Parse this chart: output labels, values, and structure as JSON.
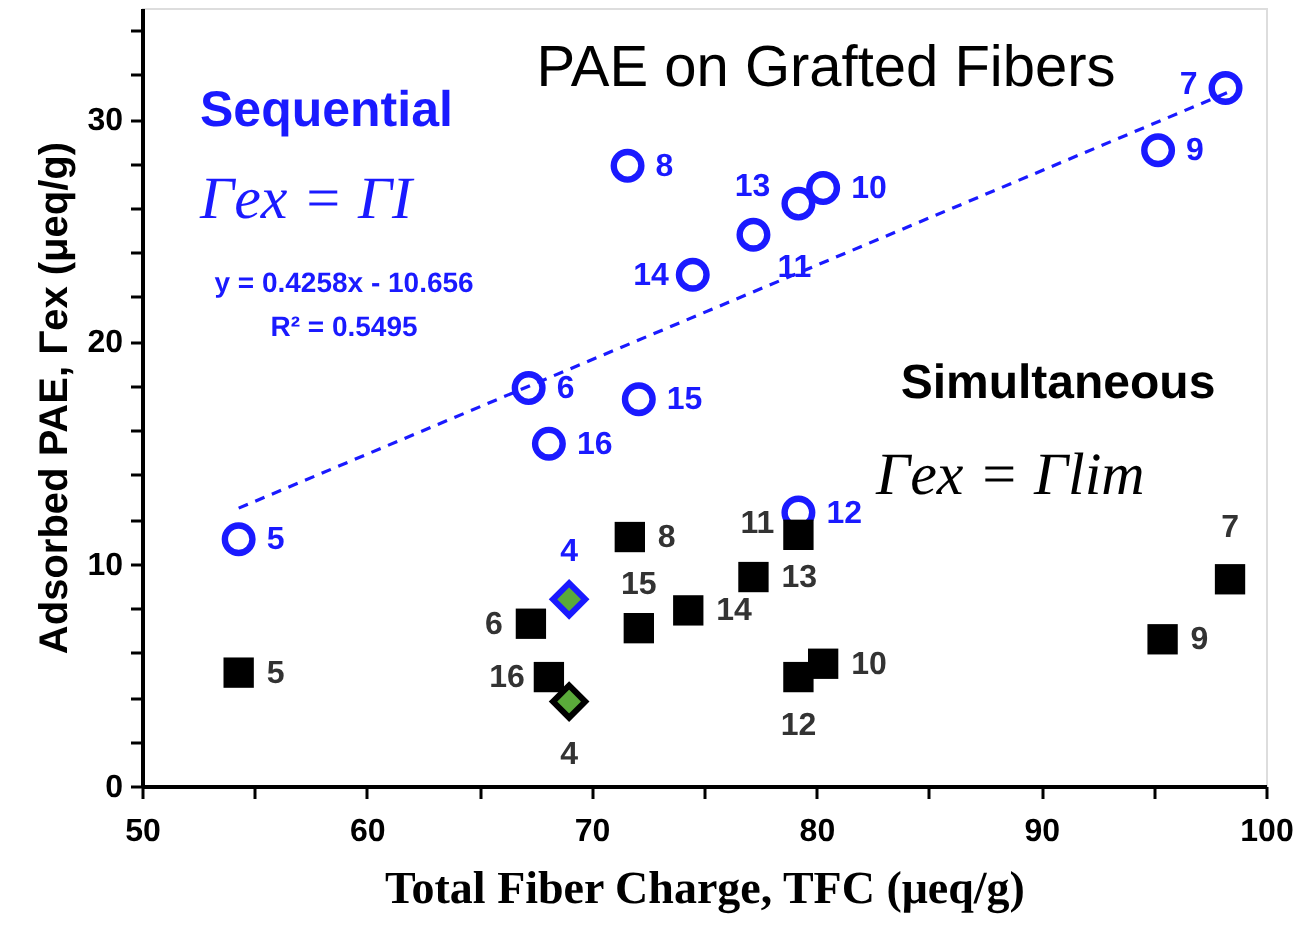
{
  "chart_data": {
    "type": "scatter",
    "title": "PAE on Grafted Fibers",
    "xlabel": "Total Fiber Charge, TFC (μeq/g)",
    "ylabel": "Adsorbed PAE, Γex (μeq/g)",
    "xlim": [
      50,
      100
    ],
    "xticks": [
      50,
      {
        "value": 55,
        "label": null
      },
      60,
      {
        "value": 65,
        "label": null
      },
      70,
      {
        "value": 75,
        "label": null
      },
      80,
      {
        "value": 85,
        "label": null
      },
      90,
      {
        "value": 95,
        "label": null
      },
      100
    ],
    "ylim": [
      0,
      35
    ],
    "yticks": [
      0,
      {
        "value": 2,
        "label": null
      },
      {
        "value": 4,
        "label": null
      },
      {
        "value": 6,
        "label": null
      },
      {
        "value": 8,
        "label": null
      },
      10,
      {
        "value": 12,
        "label": null
      },
      {
        "value": 14,
        "label": null
      },
      {
        "value": 16,
        "label": null
      },
      {
        "value": 18,
        "label": null
      },
      20,
      {
        "value": 22,
        "label": null
      },
      {
        "value": 24,
        "label": null
      },
      {
        "value": 26,
        "label": null
      },
      {
        "value": 28,
        "label": null
      },
      30,
      {
        "value": 32,
        "label": null
      },
      {
        "value": 34,
        "label": null
      }
    ],
    "grid": false,
    "series": [
      {
        "marker": "circle",
        "color": "#1a1aff",
        "x": [
          54.3,
          67.2,
          98.2,
          71.6,
          95.2,
          80.3,
          77.2,
          79.2,
          79.2,
          74.5,
          72.1,
          68.1
        ],
        "values": [
          11.1,
          17.9,
          31.4,
          27.9,
          28.6,
          26.9,
          24.8,
          12.3,
          26.2,
          23.0,
          17.4,
          15.4
        ]
      },
      {
        "marker": "square",
        "color": "#000000",
        "x": [
          54.3,
          67.3,
          98.4,
          71.7,
          95.4,
          80.3,
          79.2,
          79.2,
          77.2,
          74.3,
          72.1,
          68.1
        ],
        "values": [
          5.1,
          7.3,
          9.3,
          11.2,
          6.6,
          5.5,
          11.3,
          4.9,
          9.4,
          7.9,
          7.1,
          4.9
        ]
      },
      {
        "marker": "diamond",
        "color": "#5aaa3a",
        "x": [
          69.0
        ],
        "values": [
          8.4
        ]
      },
      {
        "marker": "diamond",
        "color": "#5aaa3a",
        "x": [
          69.0
        ],
        "values": [
          3.8
        ]
      },
      {
        "type": "line",
        "line_style": "dashed",
        "color": "#1a1aff",
        "x": [
          54.3,
          98.3
        ],
        "values": [
          12.5,
          31.2
        ]
      }
    ],
    "annotations": [
      "Sequential",
      "Γex = ΓI",
      "y = 0.4258x - 10.656",
      "R² = 0.5495",
      "Simultaneous",
      "Γex = Γlim",
      {
        "text": "5",
        "x": 54.3,
        "y": 11.1
      },
      {
        "text": "6",
        "x": 67.2,
        "y": 17.9
      },
      {
        "text": "7",
        "x": 98.2,
        "y": 31.4
      },
      {
        "text": "8",
        "x": 71.6,
        "y": 27.9
      },
      {
        "text": "9",
        "x": 95.2,
        "y": 28.6
      },
      {
        "text": "10",
        "x": 80.3,
        "y": 26.9
      },
      {
        "text": "11",
        "x": 77.2,
        "y": 24.8
      },
      {
        "text": "12",
        "x": 79.2,
        "y": 12.3
      },
      {
        "text": "13",
        "x": 79.2,
        "y": 26.2
      },
      {
        "text": "14",
        "x": 74.5,
        "y": 23.0
      },
      {
        "text": "15",
        "x": 72.1,
        "y": 17.4
      },
      {
        "text": "16",
        "x": 68.1,
        "y": 15.4
      },
      {
        "text": "4",
        "x": 69.0,
        "y": 8.4
      },
      {
        "text": "5",
        "x": 54.3,
        "y": 5.1
      },
      {
        "text": "6",
        "x": 67.3,
        "y": 7.3
      },
      {
        "text": "7",
        "x": 98.4,
        "y": 9.3
      },
      {
        "text": "8",
        "x": 71.7,
        "y": 11.2
      },
      {
        "text": "9",
        "x": 95.4,
        "y": 6.6
      },
      {
        "text": "10",
        "x": 80.3,
        "y": 5.5
      },
      {
        "text": "11",
        "x": 79.2,
        "y": 11.3
      },
      {
        "text": "12",
        "x": 79.2,
        "y": 4.9
      },
      {
        "text": "13",
        "x": 77.2,
        "y": 9.4
      },
      {
        "text": "14",
        "x": 74.3,
        "y": 7.9
      },
      {
        "text": "15",
        "x": 72.1,
        "y": 7.1
      },
      {
        "text": "16",
        "x": 68.1,
        "y": 4.9
      },
      {
        "text": "4",
        "x": 69.0,
        "y": 3.8
      }
    ]
  }
}
